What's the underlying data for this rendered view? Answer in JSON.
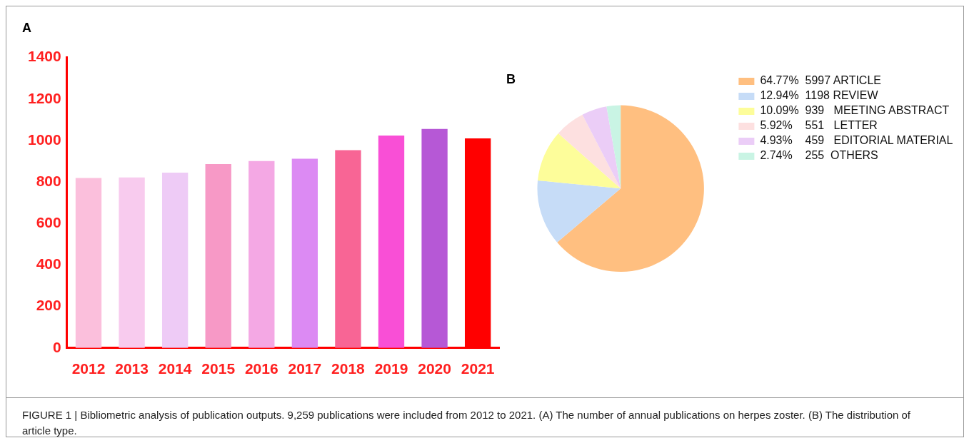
{
  "chart_data": [
    {
      "type": "bar",
      "title": "A",
      "categories": [
        "2012",
        "2013",
        "2014",
        "2015",
        "2016",
        "2017",
        "2018",
        "2019",
        "2020",
        "2021"
      ],
      "values": [
        819,
        822,
        845,
        886,
        901,
        912,
        953,
        1024,
        1056,
        1010
      ],
      "colors": [
        "#fbbfdc",
        "#f8cbee",
        "#eecbf6",
        "#f799c6",
        "#f4a8e4",
        "#dc8af3",
        "#f86595",
        "#f94fd6",
        "#b658d6",
        "#ff0000"
      ],
      "ylim": [
        0,
        1400
      ],
      "yticks": [
        0,
        200,
        400,
        600,
        800,
        1000,
        1200,
        1400
      ],
      "grid": false,
      "legend": false,
      "annotations": [
        "FIGURE 1 | Bibliometric analysis of publication outputs. 9,259 publications were included from 2012 to 2021. (A) The number of annual publications on herpes zoster. (B) The distribution of article type."
      ]
    },
    {
      "type": "pie",
      "title": "B",
      "categories": [
        "64.77%  5997 ARTICLE",
        "12.94%  1198 REVIEW",
        "10.09%  939   MEETING ABSTRACT",
        "5.92%    551   LETTER",
        "4.93%    459   EDITORIAL MATERIAL",
        "2.74%    255  OTHERS"
      ],
      "values": [
        5997,
        1198,
        939,
        551,
        459,
        255
      ],
      "colors": [
        "#ffbf80",
        "#c6dcf7",
        "#fdfd9a",
        "#fde0e0",
        "#ebcdf7",
        "#c9f4e4"
      ],
      "legend": "right"
    }
  ]
}
